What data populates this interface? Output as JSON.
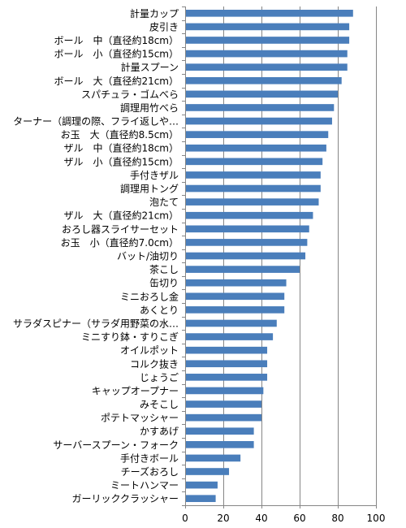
{
  "chart_data": {
    "type": "bar",
    "orientation": "horizontal",
    "title": "",
    "xlabel": "",
    "ylabel": "",
    "xlim": [
      0,
      100
    ],
    "xticks": [
      0,
      20,
      40,
      60,
      80,
      100
    ],
    "grid": true,
    "legend": "none",
    "bar_color": "#4A7EBB",
    "categories": [
      "計量カップ",
      "皮引き",
      "ボール　中（直径約18cm）",
      "ボール　小（直径約15cm）",
      "計量スプーン",
      "ボール　大（直径約21cm）",
      "スパチュラ・ゴムべら",
      "調理用竹べら",
      "ターナー（調理の際、フライ返しや…",
      "お玉　大（直径約8.5cm）",
      "ザル　中（直径約18cm）",
      "ザル　小（直径約15cm）",
      "手付きザル",
      "調理用トング",
      "泡たて",
      "ザル　大（直径約21cm）",
      "おろし器スライサーセット",
      "お玉　小（直径約7.0cm）",
      "バット/油切り",
      "茶こし",
      "缶切り",
      "ミニおろし金",
      "あくとり",
      "サラダスピナー（サラダ用野菜の水…",
      "ミニすり鉢・すりこぎ",
      "オイルポット",
      "コルク抜き",
      "じょうご",
      "キャップオープナー",
      "みそこし",
      "ポテトマッシャー",
      "かすあげ",
      "サーバースプーン・フォーク",
      "手付きボール",
      "チーズおろし",
      "ミートハンマー",
      "ガーリッククラッシャー"
    ],
    "values": [
      88,
      86,
      86,
      85,
      85,
      82,
      80,
      78,
      77,
      75,
      74,
      72,
      71,
      71,
      70,
      67,
      65,
      64,
      63,
      60,
      53,
      52,
      52,
      48,
      46,
      43,
      43,
      43,
      41,
      40,
      40,
      36,
      36,
      29,
      23,
      17,
      16
    ]
  }
}
